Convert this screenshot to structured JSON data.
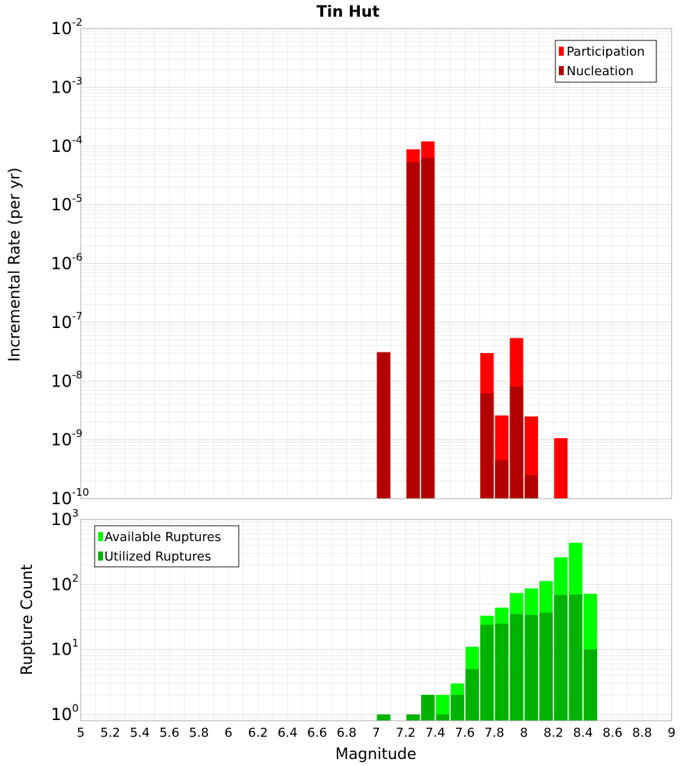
{
  "title": "Tin Hut",
  "chart_data": [
    {
      "type": "bar",
      "name": "rate-panel",
      "ylabel": "Incremental Rate (per yr)",
      "xlabel": "",
      "xlim": [
        5,
        9
      ],
      "ylim": [
        1e-10,
        0.01
      ],
      "yscale": "log",
      "y_tick_exponents": [
        "-10",
        "-9",
        "-8",
        "-7",
        "-6",
        "-5",
        "-4",
        "-3",
        "-2"
      ],
      "bin_width": 0.1,
      "grid": true,
      "legend_position": "top-right",
      "series": [
        {
          "name": "Participation",
          "color": "#ff0000",
          "x": [
            7.05,
            7.25,
            7.35,
            7.75,
            7.85,
            7.95,
            8.05,
            8.25
          ],
          "values": [
            3.1e-08,
            8.8e-05,
            0.00012,
            3e-08,
            2.6e-09,
            5.4e-08,
            2.5e-09,
            1.07e-09
          ]
        },
        {
          "name": "Nucleation",
          "color": "#b30000",
          "x": [
            7.05,
            7.25,
            7.35,
            7.75,
            7.85,
            7.95,
            8.05
          ],
          "values": [
            3.1e-08,
            5.3e-05,
            6.3e-05,
            6.2e-09,
            4.5e-10,
            8e-09,
            2.5e-10
          ]
        }
      ]
    },
    {
      "type": "bar",
      "name": "count-panel",
      "ylabel": "Rupture Count",
      "xlabel": "Magnitude",
      "xlim": [
        5,
        9
      ],
      "ylim": [
        0.8,
        1000
      ],
      "yscale": "log",
      "y_tick_exponents": [
        "0",
        "1",
        "2",
        "3"
      ],
      "x_ticks": [
        "5",
        "5.2",
        "5.4",
        "5.6",
        "5.8",
        "6",
        "6.2",
        "6.4",
        "6.6",
        "6.8",
        "7",
        "7.2",
        "7.4",
        "7.6",
        "7.8",
        "8",
        "8.2",
        "8.4",
        "8.6",
        "8.8",
        "9"
      ],
      "bin_width": 0.1,
      "grid": true,
      "legend_position": "top-left",
      "series": [
        {
          "name": "Available Ruptures",
          "color": "#00ff00",
          "x": [
            7.05,
            7.25,
            7.35,
            7.45,
            7.55,
            7.65,
            7.75,
            7.85,
            7.95,
            8.05,
            8.15,
            8.25,
            8.35,
            8.45
          ],
          "values": [
            1,
            1,
            2,
            2,
            3,
            11,
            33,
            44,
            74,
            87,
            113,
            262,
            438,
            72
          ]
        },
        {
          "name": "Utilized Ruptures",
          "color": "#00b300",
          "x": [
            7.05,
            7.25,
            7.35,
            7.45,
            7.55,
            7.65,
            7.75,
            7.85,
            7.95,
            8.05,
            8.15,
            8.25,
            8.35,
            8.45
          ],
          "values": [
            1,
            1,
            2,
            1,
            2,
            5,
            24,
            25,
            35,
            34,
            37,
            69,
            70,
            10
          ]
        }
      ]
    }
  ]
}
